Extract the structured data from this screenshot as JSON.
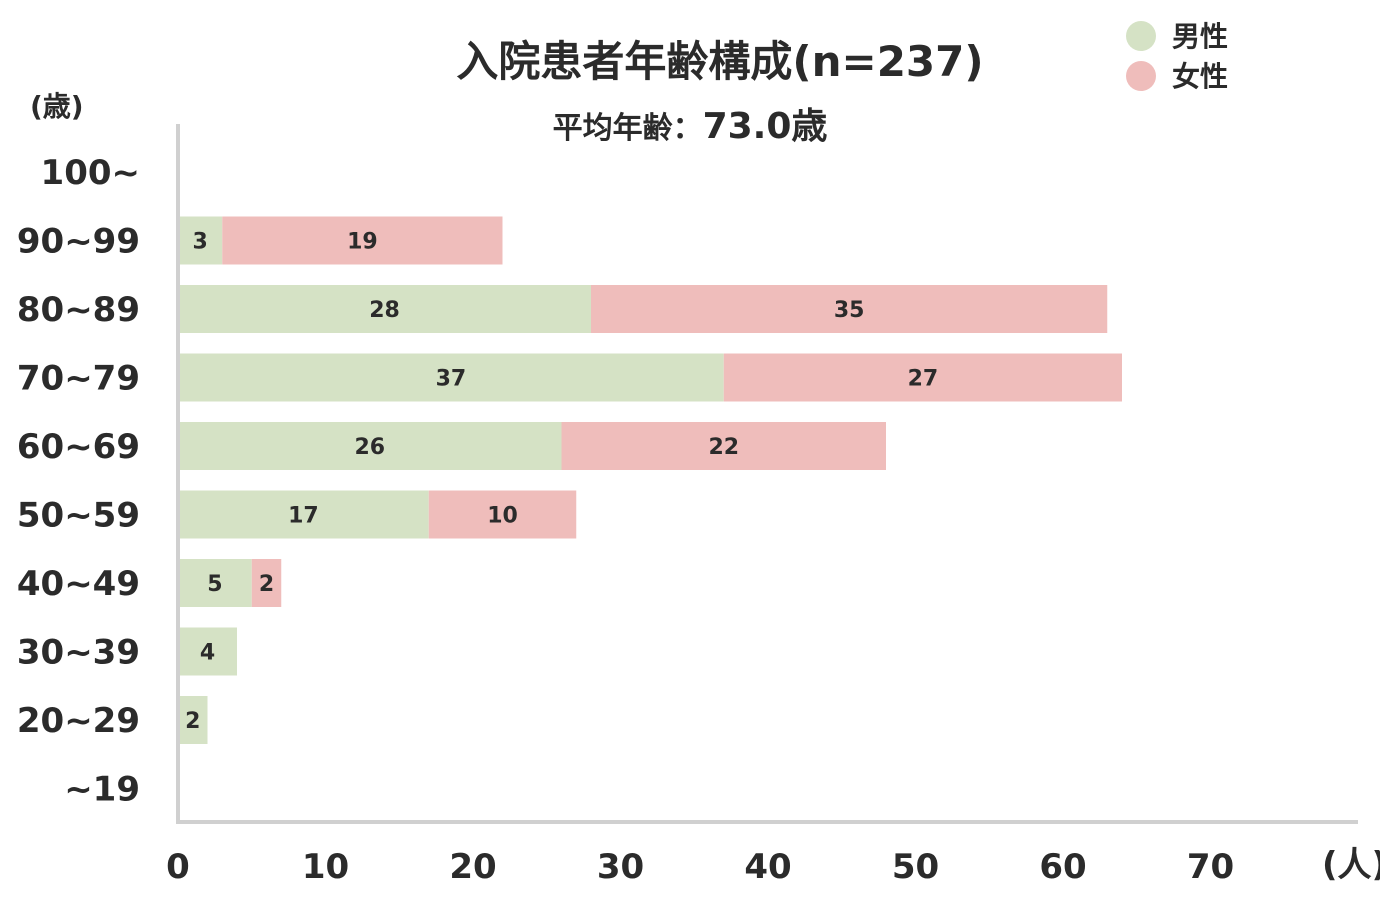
{
  "chart_data": {
    "type": "bar",
    "orientation": "horizontal",
    "stacked": true,
    "title": "入院患者年齢構成(n=237)",
    "subtitle_prefix": "平均年齢：",
    "subtitle_value": "73.0歳",
    "y_unit_label": "(歳)",
    "x_unit_label": "(人)",
    "categories": [
      "100~",
      "90~99",
      "80~89",
      "70~79",
      "60~69",
      "50~59",
      "40~49",
      "30~39",
      "20~29",
      "~19"
    ],
    "series": [
      {
        "name": "男性",
        "color": "#d5e2c5",
        "values": [
          0,
          3,
          28,
          37,
          26,
          17,
          5,
          4,
          2,
          0
        ]
      },
      {
        "name": "女性",
        "color": "#efbdbb",
        "values": [
          0,
          19,
          35,
          27,
          22,
          10,
          2,
          0,
          0,
          0
        ]
      }
    ],
    "xlim": [
      0,
      80
    ],
    "xticks": [
      0,
      10,
      20,
      30,
      40,
      50,
      60,
      70
    ],
    "legend_position": "top-right",
    "grid": false
  }
}
